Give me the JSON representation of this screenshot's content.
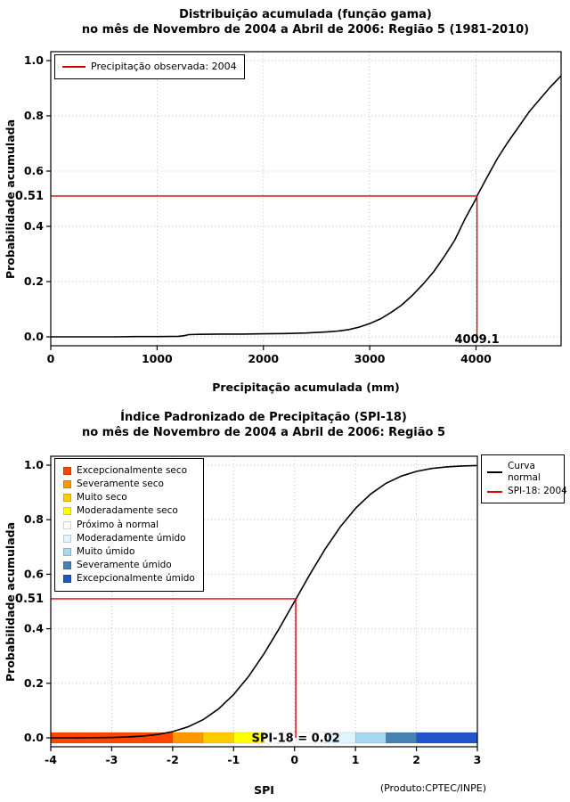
{
  "accent_red": "#dd0000",
  "chart_data": [
    {
      "type": "line",
      "title": "Distribuição acumulada (função gama)",
      "subtitle": "no mês de Novembro de 2004 a Abril de 2006: Região 5 (1981-2010)",
      "xlabel": "Precipitação acumulada (mm)",
      "ylabel": "Probabilidade acumulada",
      "xlim": [
        0,
        4800
      ],
      "ylim": [
        0,
        1
      ],
      "xticks": [
        0,
        1000,
        2000,
        3000,
        4000
      ],
      "xtick_labels": [
        "0",
        "1000",
        "2000",
        "3000",
        "4000"
      ],
      "yticks": [
        0,
        0.2,
        0.4,
        0.6,
        0.8,
        1
      ],
      "ytick_labels": [
        "0.0",
        "0.2",
        "0.4",
        "0.6",
        "0.8",
        "1.0"
      ],
      "grid": true,
      "legend_position": "top-left",
      "legend": [
        {
          "label": "Precipitação observada: 2004",
          "color": "#dd0000",
          "type": "line"
        }
      ],
      "series": [
        {
          "name": "Distribuição gama acumulada",
          "color": "#000000",
          "x": [
            0,
            200,
            400,
            600,
            800,
            1000,
            1200,
            1250,
            1300,
            1400,
            1600,
            1800,
            2000,
            2200,
            2400,
            2600,
            2700,
            2800,
            2900,
            3000,
            3100,
            3200,
            3300,
            3400,
            3500,
            3600,
            3700,
            3800,
            3900,
            4000,
            4009.1,
            4100,
            4200,
            4300,
            4400,
            4500,
            4600,
            4700,
            4800
          ],
          "y": [
            0,
            0,
            0,
            0,
            0.001,
            0.001,
            0.002,
            0.004,
            0.008,
            0.009,
            0.01,
            0.01,
            0.011,
            0.012,
            0.014,
            0.018,
            0.021,
            0.026,
            0.035,
            0.048,
            0.065,
            0.088,
            0.115,
            0.15,
            0.19,
            0.235,
            0.29,
            0.35,
            0.43,
            0.5,
            0.51,
            0.575,
            0.645,
            0.705,
            0.76,
            0.815,
            0.86,
            0.905,
            0.945
          ]
        }
      ],
      "reference": {
        "color": "#dd0000",
        "x": 4009.1,
        "y": 0.51,
        "x_label": "4009.1",
        "y_label": "0.51"
      }
    },
    {
      "type": "line",
      "title": "Índice Padronizado de Precipitação (SPI-18)",
      "subtitle": "no mês de Novembro de 2004 a Abril de 2006: Região 5",
      "xlabel": "SPI",
      "ylabel": "Probabilidade acumulada",
      "credit": "(Produto:CPTEC/INPE)",
      "xlim": [
        -4,
        3
      ],
      "ylim": [
        0,
        1
      ],
      "xticks": [
        -4,
        -3,
        -2,
        -1,
        0,
        1,
        2,
        3
      ],
      "xtick_labels": [
        "-4",
        "-3",
        "-2",
        "-1",
        "0",
        "1",
        "2",
        "3"
      ],
      "yticks": [
        0,
        0.2,
        0.4,
        0.6,
        0.8,
        1
      ],
      "ytick_labels": [
        "0.0",
        "0.2",
        "0.4",
        "0.6",
        "0.8",
        "1.0"
      ],
      "grid": true,
      "series": [
        {
          "name": "Curva normal",
          "color": "#000000",
          "x": [
            -4,
            -3.75,
            -3.5,
            -3.25,
            -3,
            -2.75,
            -2.5,
            -2.25,
            -2,
            -1.75,
            -1.5,
            -1.25,
            -1,
            -0.75,
            -0.5,
            -0.25,
            0,
            0.25,
            0.5,
            0.75,
            1,
            1.25,
            1.5,
            1.75,
            2,
            2.25,
            2.5,
            2.75,
            3
          ],
          "y": [
            3e-05,
            9e-05,
            0.0002,
            0.0006,
            0.0013,
            0.003,
            0.0062,
            0.0122,
            0.0228,
            0.0401,
            0.0668,
            0.1056,
            0.1587,
            0.2266,
            0.3085,
            0.4013,
            0.5,
            0.5987,
            0.6915,
            0.7734,
            0.8413,
            0.8944,
            0.9332,
            0.9599,
            0.9772,
            0.9878,
            0.9938,
            0.997,
            0.9987
          ]
        }
      ],
      "reference": {
        "color": "#dd0000",
        "x": 0.02,
        "y": 0.51,
        "x_label": "SPI-18 = 0.02",
        "y_label": "0.51"
      },
      "legend_right": [
        {
          "label": "Curva normal",
          "color": "#000000",
          "wrap": true
        },
        {
          "label": "SPI-18: 2004",
          "color": "#dd0000",
          "wrap": false
        }
      ],
      "category_legend": [
        {
          "label": "Excepcionalmente seco",
          "color": "#ff4500"
        },
        {
          "label": "Severamente seco",
          "color": "#ff9900"
        },
        {
          "label": "Muito seco",
          "color": "#ffcc00"
        },
        {
          "label": "Moderadamente seco",
          "color": "#ffff00"
        },
        {
          "label": "Próximo à normal",
          "color": "#ffffff"
        },
        {
          "label": "Moderadamente úmido",
          "color": "#e0f6ff"
        },
        {
          "label": "Muito úmido",
          "color": "#a8d8f0"
        },
        {
          "label": "Severamente úmido",
          "color": "#4682b4"
        },
        {
          "label": "Excepcionalmente úmido",
          "color": "#2255cc"
        }
      ],
      "category_bar": [
        {
          "from": -4,
          "to": -2,
          "color": "#ff4500"
        },
        {
          "from": -2,
          "to": -1.5,
          "color": "#ff9900"
        },
        {
          "from": -1.5,
          "to": -1,
          "color": "#ffcc00"
        },
        {
          "from": -1,
          "to": -0.5,
          "color": "#ffff00"
        },
        {
          "from": -0.5,
          "to": 0.5,
          "color": "#ffffff"
        },
        {
          "from": 0.5,
          "to": 1,
          "color": "#e0f6ff"
        },
        {
          "from": 1,
          "to": 1.5,
          "color": "#a8d8f0"
        },
        {
          "from": 1.5,
          "to": 2,
          "color": "#4682b4"
        },
        {
          "from": 2,
          "to": 3,
          "color": "#2255cc"
        }
      ]
    }
  ]
}
